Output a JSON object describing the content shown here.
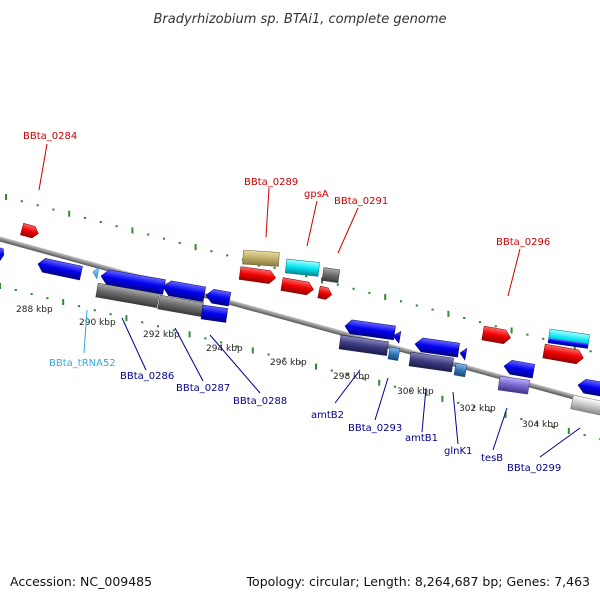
{
  "title": "Bradyrhizobium sp. BTAi1, complete genome",
  "footer": {
    "accession_label": "Accession:",
    "accession": "NC_009485",
    "topology_label": "Topology:",
    "topology": "circular",
    "length_label": "Length:",
    "length": "8,264,687 bp",
    "genes_label": "Genes:",
    "genes": "7,463"
  },
  "colors": {
    "backbone": "#8c8c8c",
    "tick": "#2e8b2e",
    "label_forward": "#cc0000",
    "label_reverse": "#00008b",
    "label_rna": "#33aadd"
  },
  "scale_labels": [
    {
      "text": "288 kbp"
    },
    {
      "text": "290 kbp"
    },
    {
      "text": "292 kbp"
    },
    {
      "text": "294 kbp"
    },
    {
      "text": "296 kbp"
    },
    {
      "text": "298 kbp"
    },
    {
      "text": "300 kbp"
    },
    {
      "text": "302 kbp"
    },
    {
      "text": "304 kbp"
    }
  ],
  "genes_list": [
    {
      "name": "BBta_0284",
      "strand": "forward",
      "color": "#ff0000"
    },
    {
      "name": "BBta_0289",
      "strand": "forward",
      "color": "#c8b870"
    },
    {
      "name": "gpsA",
      "strand": "forward",
      "color": "#00e5ee"
    },
    {
      "name": "BBta_0291",
      "strand": "forward",
      "color": "#808080"
    },
    {
      "name": "BBta_0296",
      "strand": "forward",
      "color": "#ff0000"
    },
    {
      "name": "BBta_tRNA52",
      "strand": "reverse",
      "color": "#44bbff"
    },
    {
      "name": "BBta_0286",
      "strand": "reverse",
      "color": "#606060"
    },
    {
      "name": "BBta_0287",
      "strand": "reverse",
      "color": "#606060"
    },
    {
      "name": "BBta_0288",
      "strand": "reverse",
      "color": "#0000ee"
    },
    {
      "name": "amtB2",
      "strand": "reverse",
      "color": "#404080"
    },
    {
      "name": "BBta_0293",
      "strand": "reverse",
      "color": "#3377bb"
    },
    {
      "name": "amtB1",
      "strand": "reverse",
      "color": "#404080"
    },
    {
      "name": "glnK1",
      "strand": "reverse",
      "color": "#3377bb"
    },
    {
      "name": "tesB",
      "strand": "reverse",
      "color": "#7766cc"
    },
    {
      "name": "BBta_0299",
      "strand": "reverse",
      "color": "#c0c0c0"
    }
  ]
}
